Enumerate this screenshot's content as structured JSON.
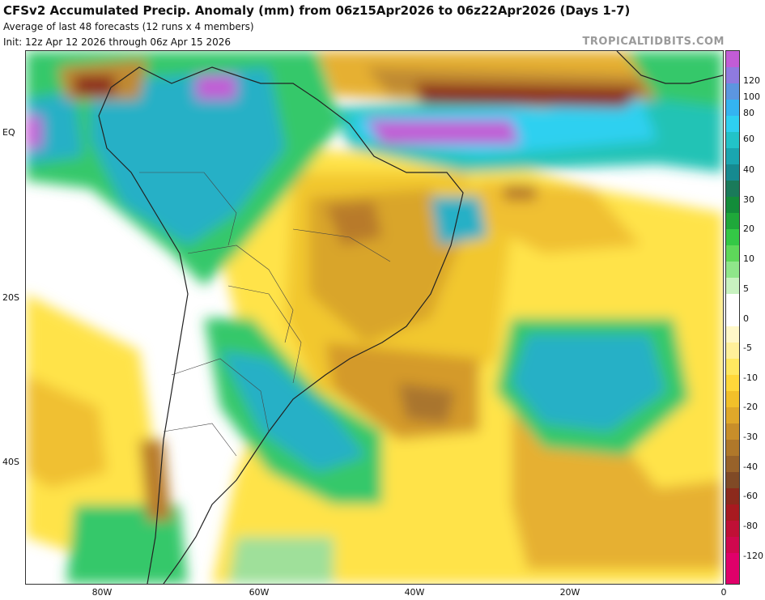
{
  "header": {
    "title": "CFSv2 Accumulated Precip. Anomaly (mm) from 06z15Apr2026 to 06z22Apr2026 (Days 1-7)",
    "subtitle1": "Average of last 48 forecasts (12 runs x 4 members)",
    "subtitle2": "Init: 12z Apr 12 2026 through 06z Apr 15 2026",
    "brand": "TROPICALTIDBITS.COM"
  },
  "axes": {
    "lat_labels": [
      "EQ",
      "20S",
      "40S"
    ],
    "lon_labels": [
      "80W",
      "60W",
      "40W",
      "20W",
      "0"
    ]
  },
  "legend": {
    "labels": [
      "120",
      "100",
      "80",
      "60",
      "40",
      "30",
      "20",
      "10",
      "5",
      "0",
      "-5",
      "-10",
      "-20",
      "-30",
      "-40",
      "-60",
      "-80",
      "-120"
    ]
  },
  "colors": {
    "land_outline": "#222222",
    "dry_extreme": "#e0006a",
    "wet_extreme": "#c25cd6"
  }
}
